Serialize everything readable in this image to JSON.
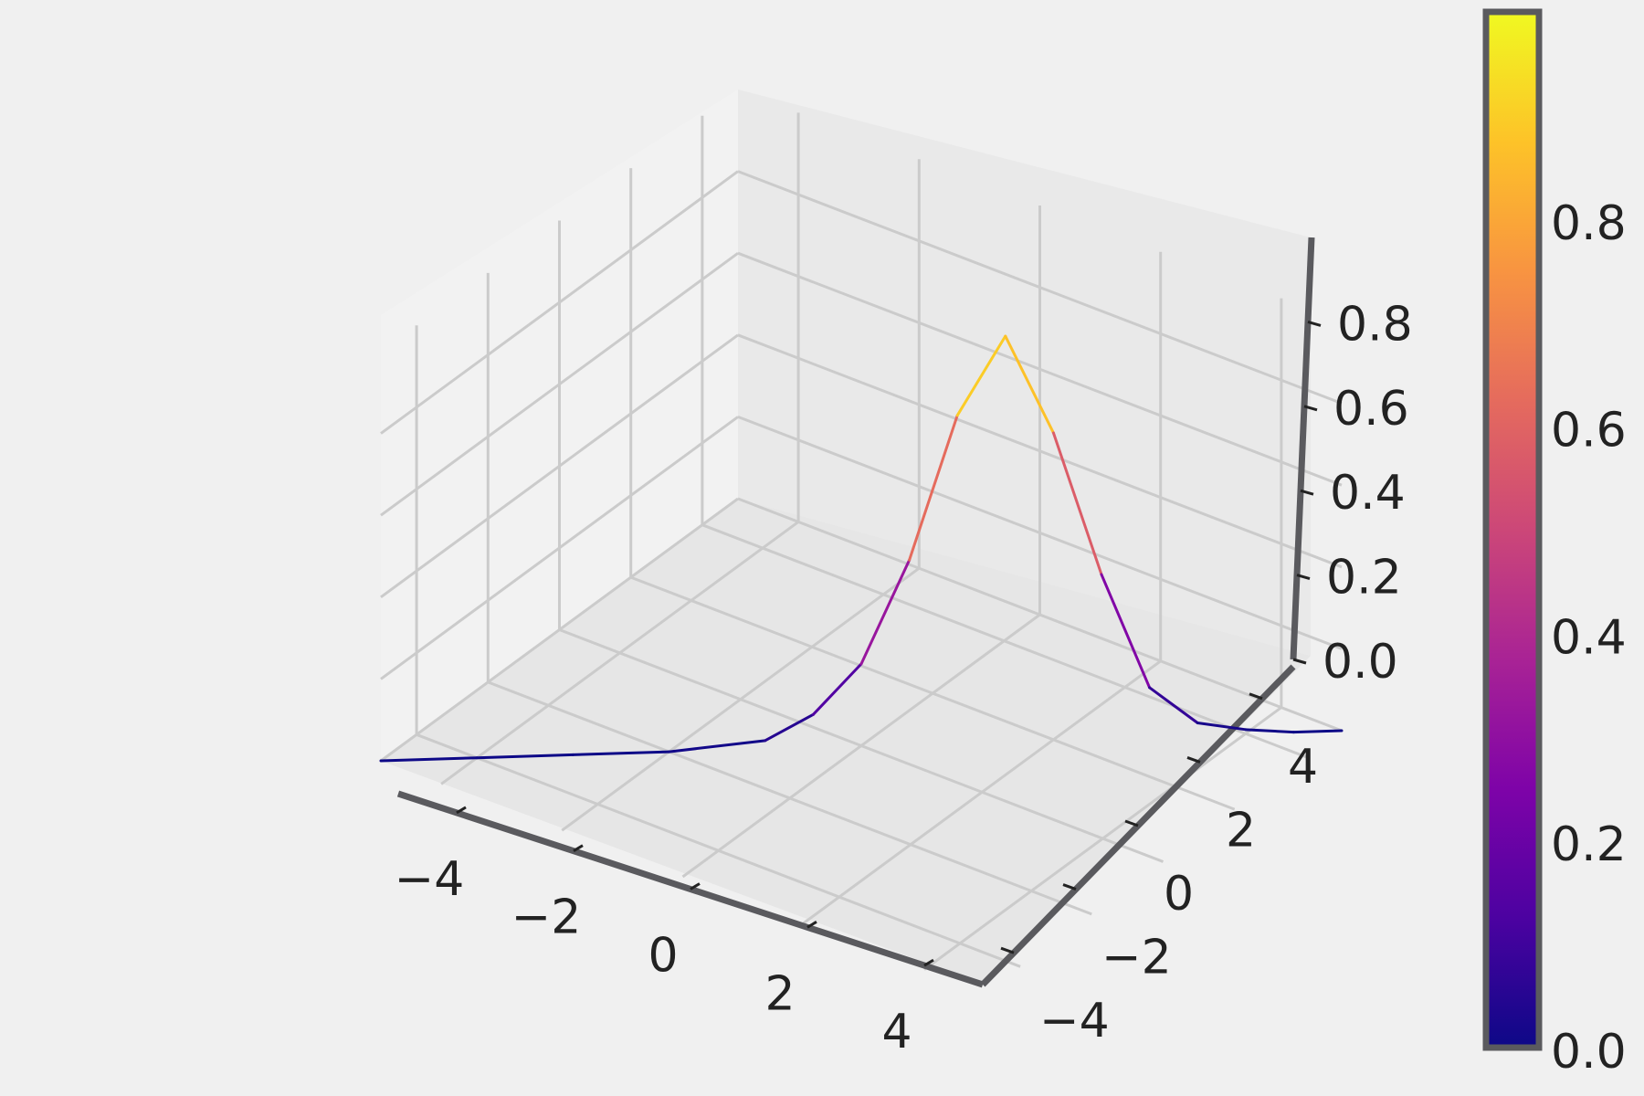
{
  "chart_data": {
    "type": "line",
    "title": "",
    "xlabel": "",
    "ylabel": "",
    "zlabel": "",
    "xlim": [
      -5,
      5
    ],
    "ylim": [
      -5,
      5
    ],
    "zlim": [
      0,
      1
    ],
    "grid": true,
    "x_ticks": [
      -4,
      -2,
      0,
      2,
      4
    ],
    "y_ticks": [
      -4,
      -2,
      0,
      2,
      4
    ],
    "z_ticks": [
      0.0,
      0.2,
      0.4,
      0.6,
      0.8
    ],
    "x_tick_labels": [
      "−4",
      "−2",
      "0",
      "2",
      "4"
    ],
    "y_tick_labels": [
      "−4",
      "−2",
      "0",
      "2",
      "4"
    ],
    "z_tick_labels": [
      "0.0",
      "0.2",
      "0.4",
      "0.6",
      "0.8"
    ],
    "series": [
      {
        "x": [
          -5,
          -4,
          -3,
          -2,
          -1,
          -0.5,
          0,
          0.5,
          1,
          1.5,
          2,
          2.5,
          3,
          3.5,
          4,
          4.5,
          5
        ],
        "y": [
          -5,
          -4,
          -3,
          -2,
          -1,
          -0.5,
          0,
          0.5,
          1,
          1.5,
          2,
          2.5,
          3,
          3.5,
          4,
          4.5,
          5
        ],
        "z": [
          0.0,
          0.0,
          0.0,
          0.0,
          0.02,
          0.08,
          0.2,
          0.45,
          0.8,
          0.99,
          0.75,
          0.4,
          0.12,
          0.03,
          0.01,
          0.0,
          0.0
        ]
      }
    ],
    "colorbar": {
      "colormap": "plasma",
      "range": [
        0,
        1
      ],
      "ticks": [
        0.0,
        0.2,
        0.4,
        0.6,
        0.8
      ],
      "tick_labels": [
        "0.0",
        "0.2",
        "0.4",
        "0.6",
        "0.8"
      ]
    },
    "colors": {
      "background": "#f0f0f0",
      "pane": "#e8e8e8",
      "grid": "#cbcbcb",
      "axis": "#555559"
    }
  }
}
